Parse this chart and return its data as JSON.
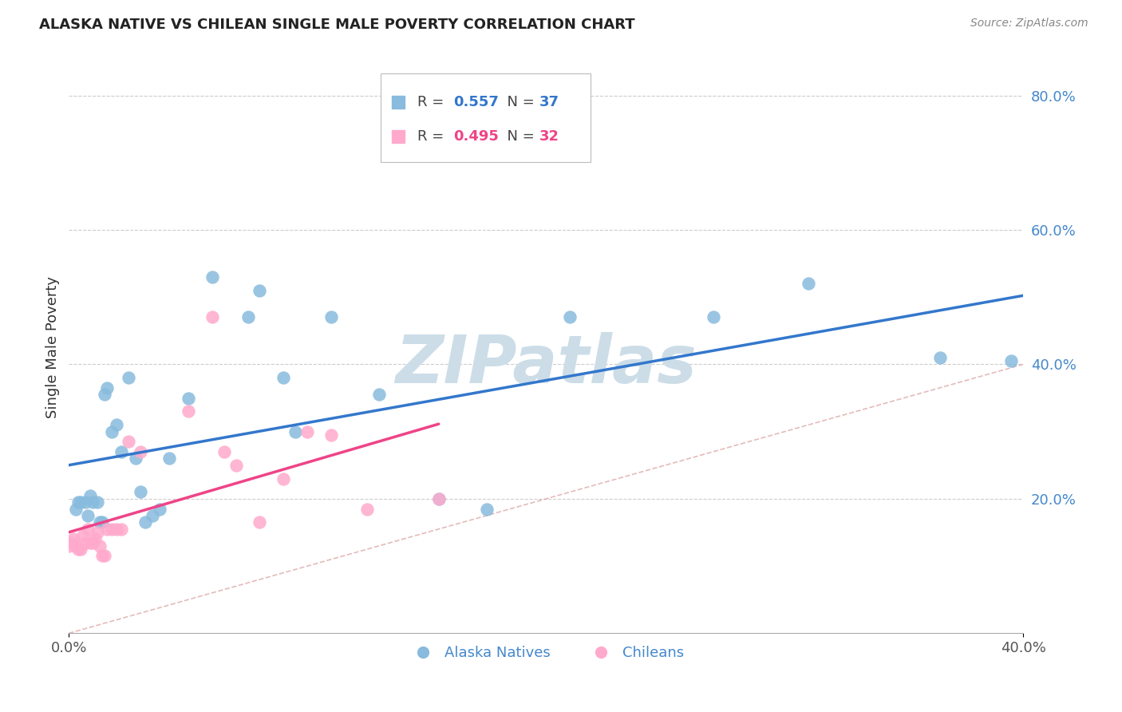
{
  "title": "ALASKA NATIVE VS CHILEAN SINGLE MALE POVERTY CORRELATION CHART",
  "source": "Source: ZipAtlas.com",
  "ylabel": "Single Male Poverty",
  "R_alaska": 0.557,
  "N_alaska": 37,
  "R_chilean": 0.495,
  "N_chilean": 32,
  "color_alaska": "#88BBDD",
  "color_chilean": "#FFAACC",
  "color_trendline_alaska": "#3377CC",
  "color_trendline_chilean": "#EE4488",
  "color_diagonal": "#DDAAAA",
  "color_ytick": "#4488CC",
  "color_title": "#222222",
  "xlim": [
    0.0,
    0.4
  ],
  "ylim": [
    0.0,
    0.85
  ],
  "yticks": [
    0.2,
    0.4,
    0.6,
    0.8
  ],
  "xticks": [
    0.0,
    0.4
  ],
  "legend_alaska": "Alaska Natives",
  "legend_chilean": "Chileans",
  "alaska_x": [
    0.003,
    0.004,
    0.005,
    0.007,
    0.008,
    0.009,
    0.01,
    0.012,
    0.013,
    0.014,
    0.015,
    0.016,
    0.018,
    0.02,
    0.022,
    0.025,
    0.028,
    0.03,
    0.032,
    0.035,
    0.038,
    0.042,
    0.05,
    0.06,
    0.075,
    0.08,
    0.09,
    0.095,
    0.11,
    0.13,
    0.155,
    0.175,
    0.21,
    0.27,
    0.31,
    0.365,
    0.395
  ],
  "alaska_y": [
    0.185,
    0.195,
    0.195,
    0.195,
    0.175,
    0.205,
    0.195,
    0.195,
    0.165,
    0.165,
    0.355,
    0.365,
    0.3,
    0.31,
    0.27,
    0.38,
    0.26,
    0.21,
    0.165,
    0.175,
    0.185,
    0.26,
    0.35,
    0.53,
    0.47,
    0.51,
    0.38,
    0.3,
    0.47,
    0.355,
    0.2,
    0.185,
    0.47,
    0.47,
    0.52,
    0.41,
    0.405
  ],
  "chilean_x": [
    0.0,
    0.001,
    0.002,
    0.003,
    0.004,
    0.005,
    0.006,
    0.007,
    0.008,
    0.009,
    0.01,
    0.011,
    0.012,
    0.013,
    0.014,
    0.015,
    0.016,
    0.018,
    0.02,
    0.022,
    0.025,
    0.03,
    0.05,
    0.06,
    0.065,
    0.07,
    0.08,
    0.09,
    0.1,
    0.11,
    0.125,
    0.155
  ],
  "chilean_y": [
    0.13,
    0.135,
    0.14,
    0.13,
    0.125,
    0.125,
    0.145,
    0.135,
    0.155,
    0.135,
    0.135,
    0.14,
    0.15,
    0.13,
    0.115,
    0.115,
    0.155,
    0.155,
    0.155,
    0.155,
    0.285,
    0.27,
    0.33,
    0.47,
    0.27,
    0.25,
    0.165,
    0.23,
    0.3,
    0.295,
    0.185,
    0.2
  ],
  "watermark": "ZIPatlas",
  "watermark_color": "#CCDDE8"
}
